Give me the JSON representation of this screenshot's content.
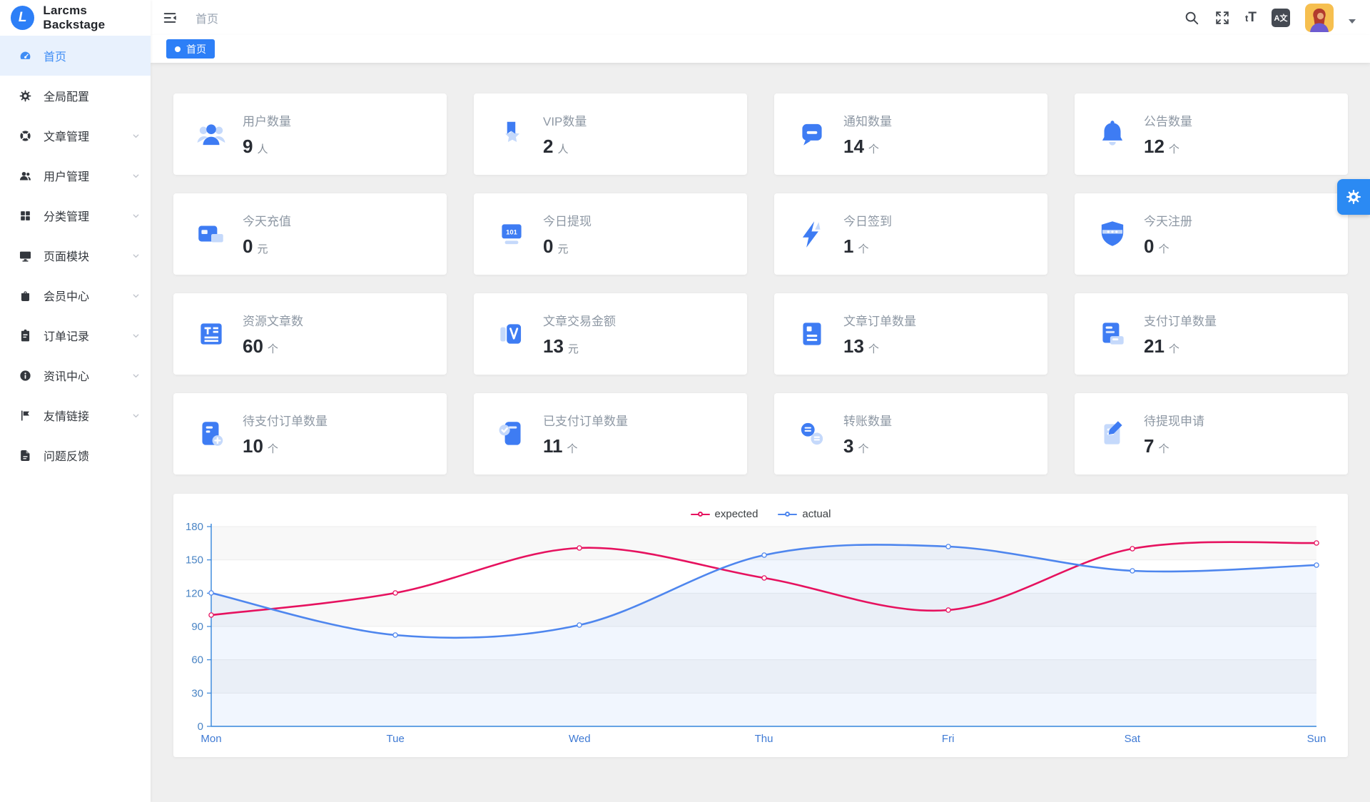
{
  "app": {
    "title": "Larcms Backstage",
    "logo_letter": "L"
  },
  "topbar": {
    "breadcrumb": "首页",
    "icons": [
      "menu-fold-icon",
      "search-icon",
      "fullscreen-icon",
      "fontsize-icon",
      "translate-icon"
    ],
    "fontsize_small": "t",
    "fontsize_big": "T",
    "translate_glyph": "A文"
  },
  "tabs": [
    {
      "label": "首页",
      "active": true
    }
  ],
  "sidebar": {
    "items": [
      {
        "label": "首页",
        "icon": "dashboard-icon",
        "active": true,
        "chevron": false
      },
      {
        "label": "全局配置",
        "icon": "gear-icon",
        "active": false,
        "chevron": false
      },
      {
        "label": "文章管理",
        "icon": "compass-icon",
        "active": false,
        "chevron": true
      },
      {
        "label": "用户管理",
        "icon": "users-icon",
        "active": false,
        "chevron": true
      },
      {
        "label": "分类管理",
        "icon": "grid-icon",
        "active": false,
        "chevron": true
      },
      {
        "label": "页面模块",
        "icon": "monitor-icon",
        "active": false,
        "chevron": true
      },
      {
        "label": "会员中心",
        "icon": "bag-icon",
        "active": false,
        "chevron": true
      },
      {
        "label": "订单记录",
        "icon": "clipboard-icon",
        "active": false,
        "chevron": true
      },
      {
        "label": "资讯中心",
        "icon": "info-icon",
        "active": false,
        "chevron": true
      },
      {
        "label": "友情链接",
        "icon": "flag-icon",
        "active": false,
        "chevron": true
      },
      {
        "label": "问题反馈",
        "icon": "file-icon",
        "active": false,
        "chevron": false
      }
    ]
  },
  "stats": [
    {
      "label": "用户数量",
      "value": "9",
      "unit": "人",
      "icon": "users-count-icon"
    },
    {
      "label": "VIP数量",
      "value": "2",
      "unit": "人",
      "icon": "vip-icon"
    },
    {
      "label": "通知数量",
      "value": "14",
      "unit": "个",
      "icon": "notice-icon"
    },
    {
      "label": "公告数量",
      "value": "12",
      "unit": "个",
      "icon": "announcement-icon"
    },
    {
      "label": "今天充值",
      "value": "0",
      "unit": "元",
      "icon": "recharge-icon"
    },
    {
      "label": "今日提现",
      "value": "0",
      "unit": "元",
      "icon": "withdraw-icon"
    },
    {
      "label": "今日签到",
      "value": "1",
      "unit": "个",
      "icon": "signin-icon"
    },
    {
      "label": "今天注册",
      "value": "0",
      "unit": "个",
      "icon": "register-icon"
    },
    {
      "label": "资源文章数",
      "value": "60",
      "unit": "个",
      "icon": "article-icon"
    },
    {
      "label": "文章交易金额",
      "value": "13",
      "unit": "元",
      "icon": "trade-icon"
    },
    {
      "label": "文章订单数量",
      "value": "13",
      "unit": "个",
      "icon": "article-order-icon"
    },
    {
      "label": "支付订单数量",
      "value": "21",
      "unit": "个",
      "icon": "pay-order-icon"
    },
    {
      "label": "待支付订单数量",
      "value": "10",
      "unit": "个",
      "icon": "pending-pay-icon"
    },
    {
      "label": "已支付订单数量",
      "value": "11",
      "unit": "个",
      "icon": "paid-icon"
    },
    {
      "label": "转账数量",
      "value": "3",
      "unit": "个",
      "icon": "transfer-icon"
    },
    {
      "label": "待提现申请",
      "value": "7",
      "unit": "个",
      "icon": "withdraw-apply-icon"
    }
  ],
  "chart_data": {
    "type": "line",
    "x": [
      "Mon",
      "Tue",
      "Wed",
      "Thu",
      "Fri",
      "Sat",
      "Sun"
    ],
    "series": [
      {
        "name": "expected",
        "color": "#e6125f",
        "values": [
          100,
          120,
          161,
          134,
          105,
          160,
          165
        ],
        "area": false
      },
      {
        "name": "actual",
        "color": "#4e86ee",
        "values": [
          120,
          82,
          91,
          154,
          162,
          140,
          145
        ],
        "area": true
      }
    ],
    "ylim": [
      0,
      180
    ],
    "yticks": [
      0,
      30,
      60,
      90,
      120,
      150,
      180
    ],
    "xlabel": "",
    "ylabel": "",
    "title": "",
    "legend_position": "top-center",
    "smooth": true,
    "grid": true
  },
  "colors": {
    "accent": "#2d7ff7",
    "sidebar_active_bg": "#e8f1fd",
    "sidebar_active_text": "#3f8df5",
    "content_bg": "#efefef",
    "card_icon_main": "#3e7cf3",
    "card_icon_light": "#c5d9fb",
    "axis_line": "#3585dc",
    "axis_label_y": "#4a84c4",
    "axis_label_x": "#3f7ad4"
  }
}
